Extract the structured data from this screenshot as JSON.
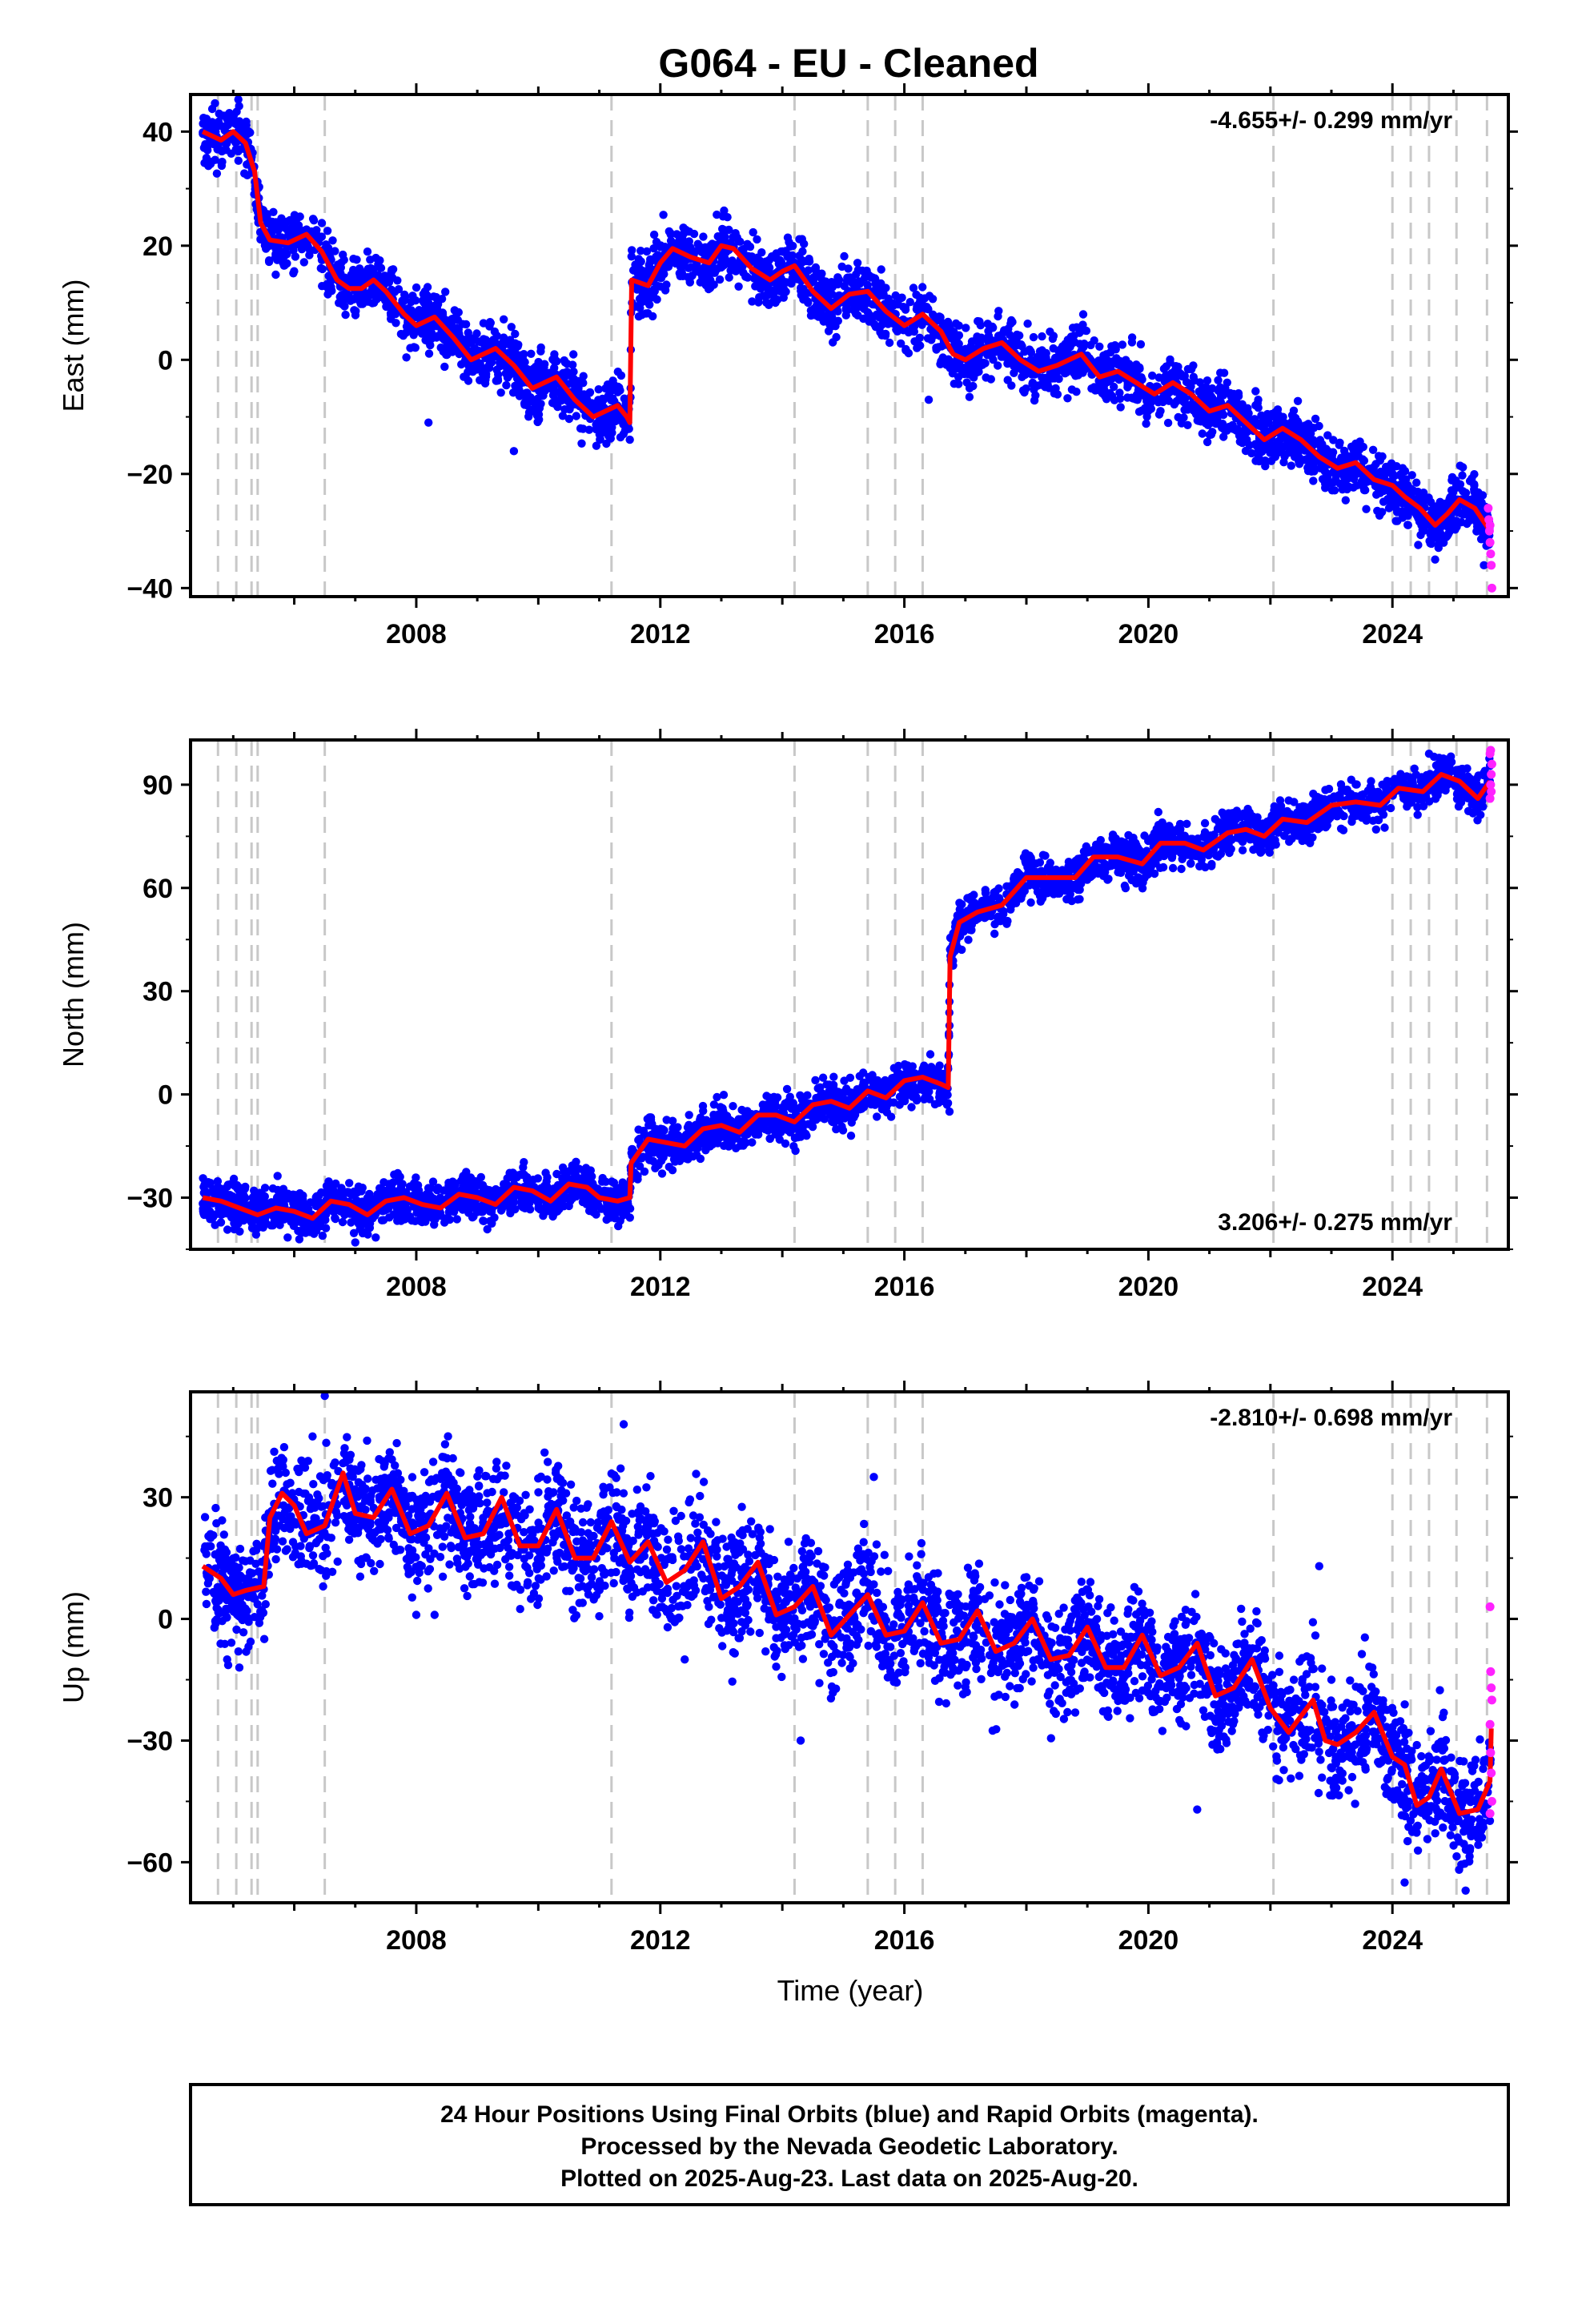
{
  "title": "G064  - EU - Cleaned",
  "colors": {
    "final": "#0000ff",
    "rapid": "#ff22ff",
    "model": "#ff0000",
    "event": "#c8c8c8"
  },
  "chart_data": [
    {
      "type": "scatter",
      "ylabel": "East (mm)",
      "rate": "-4.655+/- 0.299 mm/yr",
      "xlim": [
        2004.3,
        2025.9
      ],
      "ylim": [
        -41.5,
        46.5
      ],
      "yticks": [
        -40,
        -20,
        0,
        20,
        40
      ],
      "ytick_labels": [
        "−40",
        "−20",
        "0",
        "20",
        "40"
      ],
      "xticks": [
        2008,
        2012,
        2016,
        2020,
        2024
      ],
      "xtick_labels": [
        "2008",
        "2012",
        "2016",
        "2020",
        "2024"
      ],
      "events": [
        2004.75,
        2005.05,
        2005.3,
        2005.4,
        2006.5,
        2011.2,
        2014.2,
        2015.4,
        2015.85,
        2016.3,
        2022.05,
        2024.0,
        2024.3,
        2024.6,
        2025.05,
        2025.55
      ],
      "model": [
        [
          2004.5,
          40
        ],
        [
          2004.8,
          38.5
        ],
        [
          2005.0,
          40
        ],
        [
          2005.2,
          38
        ],
        [
          2005.35,
          33
        ],
        [
          2005.45,
          24
        ],
        [
          2005.6,
          21
        ],
        [
          2005.9,
          20.5
        ],
        [
          2006.2,
          22
        ],
        [
          2006.45,
          19
        ],
        [
          2006.7,
          14
        ],
        [
          2006.9,
          12.5
        ],
        [
          2007.1,
          12.5
        ],
        [
          2007.3,
          14
        ],
        [
          2007.5,
          12
        ],
        [
          2007.8,
          8
        ],
        [
          2008.0,
          6
        ],
        [
          2008.3,
          7.5
        ],
        [
          2008.6,
          4
        ],
        [
          2008.9,
          0
        ],
        [
          2009.3,
          2
        ],
        [
          2009.6,
          -1
        ],
        [
          2009.9,
          -5
        ],
        [
          2010.3,
          -3
        ],
        [
          2010.6,
          -7
        ],
        [
          2010.9,
          -10
        ],
        [
          2011.3,
          -8
        ],
        [
          2011.45,
          -10
        ],
        [
          2011.5,
          -11
        ],
        [
          2011.53,
          14
        ],
        [
          2011.8,
          13
        ],
        [
          2012.0,
          17
        ],
        [
          2012.2,
          19.5
        ],
        [
          2012.5,
          18
        ],
        [
          2012.8,
          17
        ],
        [
          2013.0,
          20
        ],
        [
          2013.2,
          19.5
        ],
        [
          2013.5,
          16
        ],
        [
          2013.8,
          14
        ],
        [
          2014.0,
          15.5
        ],
        [
          2014.2,
          16.5
        ],
        [
          2014.5,
          12
        ],
        [
          2014.8,
          9
        ],
        [
          2015.1,
          11.5
        ],
        [
          2015.4,
          12
        ],
        [
          2015.7,
          8.5
        ],
        [
          2016.0,
          6
        ],
        [
          2016.3,
          8
        ],
        [
          2016.6,
          5
        ],
        [
          2016.8,
          1
        ],
        [
          2017.0,
          0
        ],
        [
          2017.3,
          2
        ],
        [
          2017.6,
          3
        ],
        [
          2017.9,
          0
        ],
        [
          2018.2,
          -2
        ],
        [
          2018.5,
          -1
        ],
        [
          2018.9,
          1
        ],
        [
          2019.2,
          -3
        ],
        [
          2019.5,
          -2
        ],
        [
          2019.8,
          -4
        ],
        [
          2020.1,
          -6
        ],
        [
          2020.4,
          -4
        ],
        [
          2020.7,
          -6
        ],
        [
          2021.0,
          -9
        ],
        [
          2021.3,
          -8
        ],
        [
          2021.6,
          -11
        ],
        [
          2021.9,
          -14
        ],
        [
          2022.2,
          -12
        ],
        [
          2022.5,
          -14
        ],
        [
          2022.8,
          -17
        ],
        [
          2023.1,
          -19
        ],
        [
          2023.4,
          -18
        ],
        [
          2023.7,
          -21
        ],
        [
          2024.0,
          -22
        ],
        [
          2024.2,
          -24
        ],
        [
          2024.45,
          -26
        ],
        [
          2024.7,
          -29
        ],
        [
          2024.9,
          -27
        ],
        [
          2025.1,
          -24.5
        ],
        [
          2025.35,
          -26
        ],
        [
          2025.6,
          -30
        ]
      ],
      "band": 2.6,
      "outliers": [
        [
          2008.2,
          -11
        ],
        [
          2009.6,
          -16
        ],
        [
          2011.5,
          -14
        ],
        [
          2012.0,
          15
        ],
        [
          2013.1,
          25
        ],
        [
          2016.4,
          -7
        ],
        [
          2021.8,
          -7
        ],
        [
          2023.8,
          -27
        ],
        [
          2024.7,
          -35
        ],
        [
          2025.5,
          -36
        ]
      ],
      "rapid": [
        [
          2025.57,
          -26
        ],
        [
          2025.58,
          -28
        ],
        [
          2025.59,
          -30
        ],
        [
          2025.6,
          -32
        ],
        [
          2025.61,
          -34
        ],
        [
          2025.62,
          -36
        ],
        [
          2025.63,
          -40
        ],
        [
          2025.6,
          -29
        ]
      ]
    },
    {
      "type": "scatter",
      "ylabel": "North (mm)",
      "rate": "3.206+/- 0.275 mm/yr",
      "xlim": [
        2004.3,
        2025.9
      ],
      "ylim": [
        -45,
        103
      ],
      "yticks": [
        -30,
        0,
        30,
        60,
        90
      ],
      "ytick_labels": [
        "−30",
        "0",
        "30",
        "60",
        "90"
      ],
      "xticks": [
        2008,
        2012,
        2016,
        2020,
        2024
      ],
      "xtick_labels": [
        "2008",
        "2012",
        "2016",
        "2020",
        "2024"
      ],
      "events": [
        2004.75,
        2005.05,
        2005.3,
        2005.4,
        2006.5,
        2011.2,
        2014.2,
        2015.4,
        2015.85,
        2016.3,
        2022.05,
        2024.0,
        2024.3,
        2024.6,
        2025.05,
        2025.55
      ],
      "model": [
        [
          2004.5,
          -30
        ],
        [
          2004.8,
          -31
        ],
        [
          2005.1,
          -33
        ],
        [
          2005.4,
          -35
        ],
        [
          2005.7,
          -33
        ],
        [
          2006.0,
          -34
        ],
        [
          2006.3,
          -36
        ],
        [
          2006.6,
          -31
        ],
        [
          2006.9,
          -32
        ],
        [
          2007.2,
          -35
        ],
        [
          2007.5,
          -31
        ],
        [
          2007.8,
          -30
        ],
        [
          2008.1,
          -32
        ],
        [
          2008.4,
          -33
        ],
        [
          2008.7,
          -29
        ],
        [
          2009.0,
          -30
        ],
        [
          2009.3,
          -32
        ],
        [
          2009.6,
          -27
        ],
        [
          2009.9,
          -28
        ],
        [
          2010.2,
          -31
        ],
        [
          2010.5,
          -26
        ],
        [
          2010.8,
          -27
        ],
        [
          2011.0,
          -30
        ],
        [
          2011.3,
          -31
        ],
        [
          2011.5,
          -30
        ],
        [
          2011.52,
          -20
        ],
        [
          2011.8,
          -13
        ],
        [
          2012.1,
          -14
        ],
        [
          2012.4,
          -15
        ],
        [
          2012.7,
          -10
        ],
        [
          2013.0,
          -9
        ],
        [
          2013.3,
          -11
        ],
        [
          2013.6,
          -6
        ],
        [
          2013.9,
          -6
        ],
        [
          2014.2,
          -8
        ],
        [
          2014.5,
          -3
        ],
        [
          2014.8,
          -2
        ],
        [
          2015.1,
          -4
        ],
        [
          2015.4,
          1
        ],
        [
          2015.7,
          -1
        ],
        [
          2016.0,
          4
        ],
        [
          2016.3,
          5
        ],
        [
          2016.6,
          3
        ],
        [
          2016.72,
          2
        ],
        [
          2016.75,
          40
        ],
        [
          2016.9,
          50
        ],
        [
          2017.2,
          53
        ],
        [
          2017.6,
          55
        ],
        [
          2018.0,
          63
        ],
        [
          2018.4,
          63
        ],
        [
          2018.8,
          63
        ],
        [
          2019.1,
          69
        ],
        [
          2019.5,
          69
        ],
        [
          2019.9,
          67
        ],
        [
          2020.2,
          73
        ],
        [
          2020.6,
          73
        ],
        [
          2020.9,
          71
        ],
        [
          2021.3,
          76
        ],
        [
          2021.6,
          77
        ],
        [
          2021.9,
          75
        ],
        [
          2022.2,
          80
        ],
        [
          2022.6,
          79
        ],
        [
          2023.0,
          84
        ],
        [
          2023.4,
          85
        ],
        [
          2023.8,
          84
        ],
        [
          2024.1,
          89
        ],
        [
          2024.5,
          88
        ],
        [
          2024.8,
          93
        ],
        [
          2025.1,
          91
        ],
        [
          2025.4,
          86
        ],
        [
          2025.6,
          91
        ]
      ],
      "band": 3.2,
      "outliers": [
        [
          2007.0,
          -43
        ],
        [
          2012.2,
          -22
        ],
        [
          2016.74,
          20
        ],
        [
          2016.74,
          -5
        ],
        [
          2020.0,
          65
        ],
        [
          2024.6,
          99
        ]
      ],
      "rapid": [
        [
          2025.6,
          86
        ],
        [
          2025.61,
          90
        ],
        [
          2025.62,
          93
        ],
        [
          2025.63,
          96
        ],
        [
          2025.6,
          99
        ],
        [
          2025.61,
          100
        ],
        [
          2025.62,
          88
        ]
      ]
    },
    {
      "type": "scatter",
      "ylabel": "Up (mm)",
      "xlabel": "Time (year)",
      "rate": "-2.810+/- 0.698 mm/yr",
      "xlim": [
        2004.3,
        2025.9
      ],
      "ylim": [
        -70,
        56
      ],
      "yticks": [
        -60,
        -30,
        0,
        30
      ],
      "ytick_labels": [
        "−60",
        "−30",
        "0",
        "30"
      ],
      "xticks": [
        2008,
        2012,
        2016,
        2020,
        2024
      ],
      "xtick_labels": [
        "2008",
        "2012",
        "2016",
        "2020",
        "2024"
      ],
      "events": [
        2004.75,
        2005.05,
        2005.3,
        2005.4,
        2006.5,
        2011.2,
        2014.2,
        2015.4,
        2015.85,
        2016.3,
        2022.05,
        2024.0,
        2024.3,
        2024.6,
        2025.05,
        2025.55
      ],
      "model": [
        [
          2004.5,
          13
        ],
        [
          2004.8,
          10
        ],
        [
          2005.0,
          6
        ],
        [
          2005.2,
          7
        ],
        [
          2005.5,
          8
        ],
        [
          2005.6,
          25
        ],
        [
          2005.8,
          31
        ],
        [
          2006.0,
          28
        ],
        [
          2006.2,
          21
        ],
        [
          2006.5,
          23
        ],
        [
          2006.8,
          36
        ],
        [
          2007.0,
          26
        ],
        [
          2007.3,
          25
        ],
        [
          2007.6,
          32
        ],
        [
          2007.9,
          21
        ],
        [
          2008.2,
          23
        ],
        [
          2008.5,
          31
        ],
        [
          2008.8,
          20
        ],
        [
          2009.1,
          21
        ],
        [
          2009.4,
          30
        ],
        [
          2009.7,
          18
        ],
        [
          2010.0,
          18
        ],
        [
          2010.3,
          27
        ],
        [
          2010.6,
          15
        ],
        [
          2010.9,
          15
        ],
        [
          2011.2,
          24
        ],
        [
          2011.5,
          14
        ],
        [
          2011.8,
          19
        ],
        [
          2012.1,
          9
        ],
        [
          2012.4,
          12
        ],
        [
          2012.7,
          19
        ],
        [
          2013.0,
          5
        ],
        [
          2013.3,
          8
        ],
        [
          2013.6,
          14
        ],
        [
          2013.9,
          1
        ],
        [
          2014.2,
          3
        ],
        [
          2014.5,
          8
        ],
        [
          2014.8,
          -4
        ],
        [
          2015.1,
          1
        ],
        [
          2015.4,
          6
        ],
        [
          2015.7,
          -4
        ],
        [
          2016.0,
          -3
        ],
        [
          2016.3,
          4
        ],
        [
          2016.6,
          -6
        ],
        [
          2016.9,
          -5
        ],
        [
          2017.2,
          2
        ],
        [
          2017.5,
          -8
        ],
        [
          2017.8,
          -6
        ],
        [
          2018.1,
          0
        ],
        [
          2018.4,
          -10
        ],
        [
          2018.7,
          -9
        ],
        [
          2019.0,
          -2
        ],
        [
          2019.3,
          -12
        ],
        [
          2019.6,
          -12
        ],
        [
          2019.9,
          -4
        ],
        [
          2020.2,
          -14
        ],
        [
          2020.5,
          -12
        ],
        [
          2020.8,
          -6
        ],
        [
          2021.1,
          -19
        ],
        [
          2021.4,
          -17
        ],
        [
          2021.7,
          -10
        ],
        [
          2022.0,
          -22
        ],
        [
          2022.3,
          -28
        ],
        [
          2022.5,
          -24
        ],
        [
          2022.7,
          -20
        ],
        [
          2022.9,
          -30
        ],
        [
          2023.1,
          -31
        ],
        [
          2023.4,
          -28
        ],
        [
          2023.7,
          -23
        ],
        [
          2024.0,
          -34
        ],
        [
          2024.2,
          -36
        ],
        [
          2024.4,
          -46
        ],
        [
          2024.6,
          -44
        ],
        [
          2024.8,
          -37
        ],
        [
          2025.1,
          -48
        ],
        [
          2025.4,
          -47
        ],
        [
          2025.6,
          -40
        ],
        [
          2025.62,
          -27
        ]
      ],
      "band": 7,
      "outliers": [
        [
          2004.9,
          -10
        ],
        [
          2005.1,
          -12
        ],
        [
          2006.5,
          55
        ],
        [
          2006.3,
          45
        ],
        [
          2008.0,
          1
        ],
        [
          2008.3,
          1
        ],
        [
          2011.4,
          48
        ],
        [
          2012.4,
          -10
        ],
        [
          2014.3,
          -30
        ],
        [
          2015.5,
          35
        ],
        [
          2020.8,
          -47
        ],
        [
          2022.8,
          13
        ],
        [
          2023.0,
          -15
        ],
        [
          2024.2,
          -65
        ],
        [
          2025.2,
          -67
        ]
      ],
      "rapid": [
        [
          2025.6,
          3
        ],
        [
          2025.61,
          -13
        ],
        [
          2025.62,
          -17
        ],
        [
          2025.63,
          -20
        ],
        [
          2025.6,
          -26
        ],
        [
          2025.61,
          -33
        ],
        [
          2025.62,
          -38
        ],
        [
          2025.63,
          -45
        ],
        [
          2025.6,
          -48
        ]
      ]
    }
  ],
  "footer": {
    "line1": "24 Hour Positions Using Final Orbits (blue) and Rapid Orbits (magenta).",
    "line2": "Processed by the Nevada Geodetic Laboratory.",
    "line3": "Plotted on 2025-Aug-23. Last data on 2025-Aug-20."
  }
}
